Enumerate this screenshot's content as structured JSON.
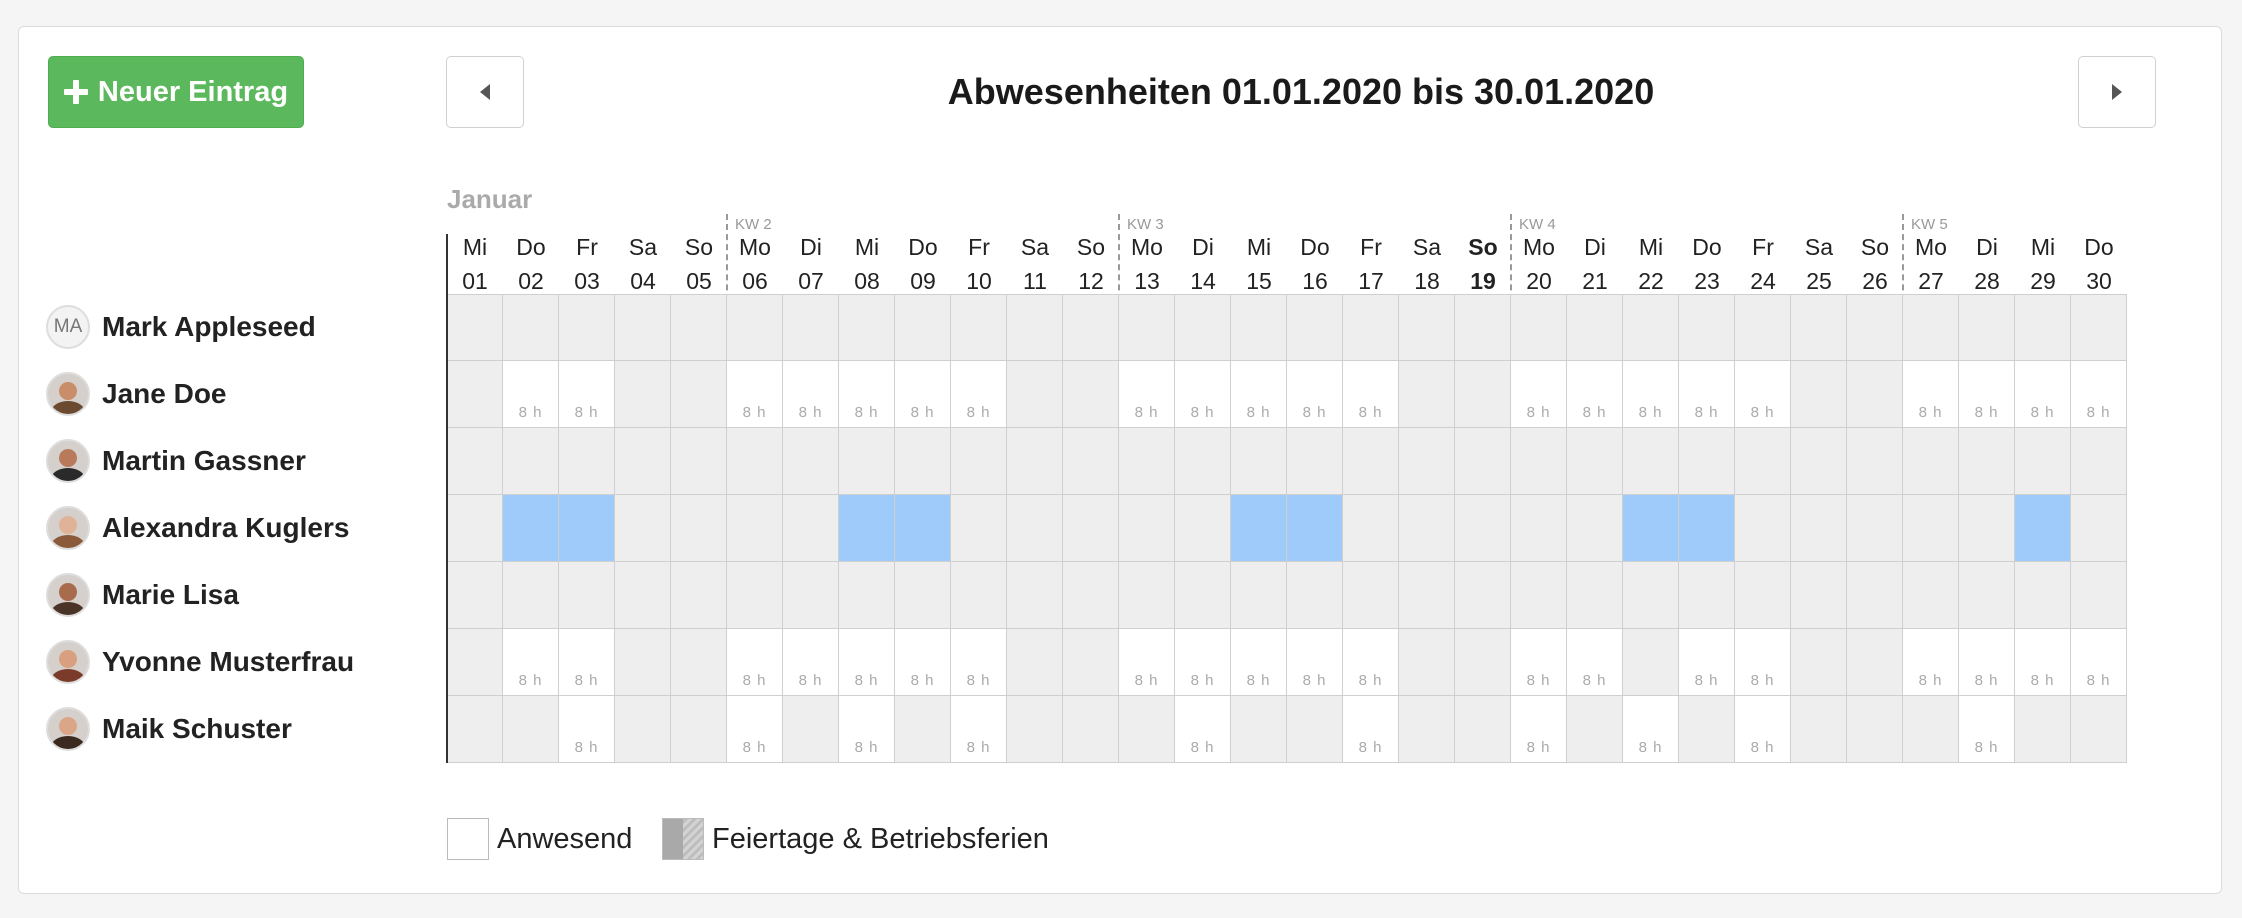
{
  "toolbar": {
    "new_entry_label": "Neuer Eintrag"
  },
  "header": {
    "title": "Abwesenheiten 01.01.2020 bis 30.01.2020"
  },
  "calendar": {
    "month": "Januar",
    "days": [
      {
        "wd": "Mi",
        "d": "01"
      },
      {
        "wd": "Do",
        "d": "02"
      },
      {
        "wd": "Fr",
        "d": "03"
      },
      {
        "wd": "Sa",
        "d": "04"
      },
      {
        "wd": "So",
        "d": "05"
      },
      {
        "wd": "Mo",
        "d": "06",
        "kw": "KW 2"
      },
      {
        "wd": "Di",
        "d": "07"
      },
      {
        "wd": "Mi",
        "d": "08"
      },
      {
        "wd": "Do",
        "d": "09"
      },
      {
        "wd": "Fr",
        "d": "10"
      },
      {
        "wd": "Sa",
        "d": "11"
      },
      {
        "wd": "So",
        "d": "12"
      },
      {
        "wd": "Mo",
        "d": "13",
        "kw": "KW 3"
      },
      {
        "wd": "Di",
        "d": "14"
      },
      {
        "wd": "Mi",
        "d": "15"
      },
      {
        "wd": "Do",
        "d": "16"
      },
      {
        "wd": "Fr",
        "d": "17"
      },
      {
        "wd": "Sa",
        "d": "18"
      },
      {
        "wd": "So",
        "d": "19",
        "bold": true
      },
      {
        "wd": "Mo",
        "d": "20",
        "kw": "KW 4"
      },
      {
        "wd": "Di",
        "d": "21"
      },
      {
        "wd": "Mi",
        "d": "22"
      },
      {
        "wd": "Do",
        "d": "23"
      },
      {
        "wd": "Fr",
        "d": "24"
      },
      {
        "wd": "Sa",
        "d": "25"
      },
      {
        "wd": "So",
        "d": "26"
      },
      {
        "wd": "Mo",
        "d": "27",
        "kw": "KW 5"
      },
      {
        "wd": "Di",
        "d": "28"
      },
      {
        "wd": "Mi",
        "d": "29"
      },
      {
        "wd": "Do",
        "d": "30"
      }
    ],
    "hours_label": "8 h",
    "people": [
      {
        "name": "Mark Appleseed",
        "initials": "MA",
        "avatar_icon": "initials-avatar",
        "row": "gggggggggggggggggggggggggggggg"
      },
      {
        "name": "Jane Doe",
        "avatar_icon": "person-photo-icon",
        "row": "gwwggwwwwwggwwwwwggwwwwwggwwww"
      },
      {
        "name": "Martin Gassner",
        "avatar_icon": "person-photo-icon",
        "row": "gggggggggggggggggggggggggggggg"
      },
      {
        "name": "Alexandra Kuglers",
        "avatar_icon": "person-photo-icon",
        "row": "gbbggggbbgggggbbgggggbbgggggbg"
      },
      {
        "name": "Marie Lisa",
        "avatar_icon": "person-photo-icon",
        "row": "gggggggggggggggggggggggggggggg"
      },
      {
        "name": "Yvonne Musterfrau",
        "avatar_icon": "person-photo-icon",
        "row": "gwwggwwwwwggwwwwwggwwgwwggwwww"
      },
      {
        "name": "Maik Schuster",
        "avatar_icon": "person-photo-icon",
        "row": "ggwggwgwgwgggwggwggwgwgwgggwgg"
      }
    ]
  },
  "legend": {
    "present_label": "Anwesend",
    "holiday_label": "Feiertage & Betriebsferien"
  },
  "colors": {
    "accent_green": "#5cb85c",
    "absence_blue": "#9ecbfa",
    "off_grey": "#eeeeee"
  }
}
